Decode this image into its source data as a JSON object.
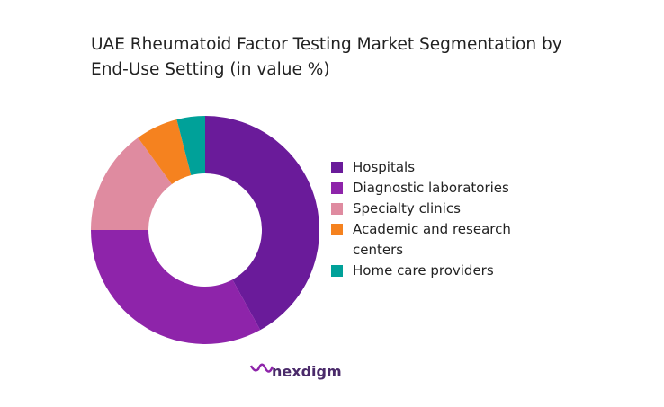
{
  "chart_data": {
    "type": "donut",
    "title": "UAE Rheumatoid Factor Testing Market Segmentation by End-Use Setting (in value %)",
    "categories": [
      "Hospitals",
      "Diagnostic laboratories",
      "Specialty clinics",
      "Academic and research centers",
      "Home care providers"
    ],
    "values": [
      42,
      33,
      15,
      6,
      4
    ],
    "colors": [
      "#6a1b9a",
      "#8e24aa",
      "#df8ba0",
      "#f5821f",
      "#00a199"
    ],
    "legend": "right"
  },
  "brand": "nexdigm"
}
